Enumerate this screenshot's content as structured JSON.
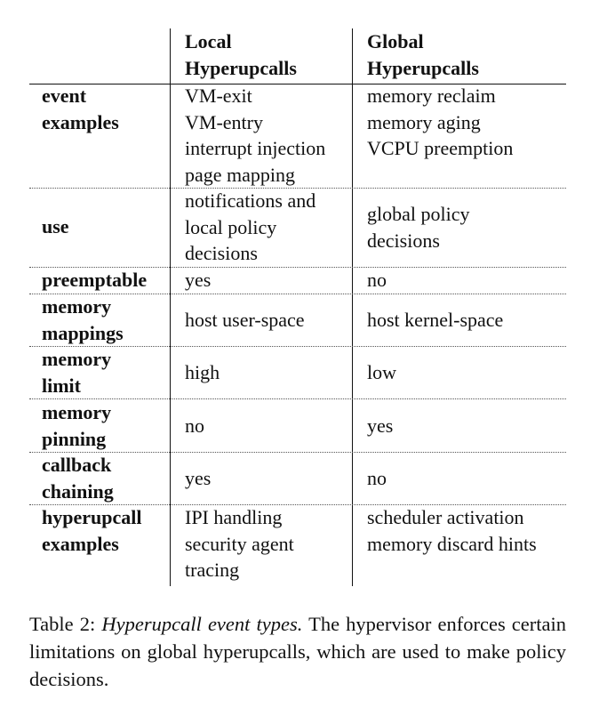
{
  "table": {
    "headers": [
      "Local\nHyperupcalls",
      "Global\nHyperupcalls"
    ],
    "rows": [
      {
        "label": "event\nexamples",
        "local": "VM-exit\nVM-entry\ninterrupt injection\npage mapping",
        "global": "memory reclaim\nmemory aging\nVCPU preemption"
      },
      {
        "label": "use",
        "local": "notifications and\nlocal policy\ndecisions",
        "global": "global policy\ndecisions"
      },
      {
        "label": "preemptable",
        "local": "yes",
        "global": "no"
      },
      {
        "label": "memory\nmappings",
        "local": "host user-space",
        "global": "host kernel-space"
      },
      {
        "label": "memory\nlimit",
        "local": "high",
        "global": "low"
      },
      {
        "label": "memory\npinning",
        "local": "no",
        "global": "yes"
      },
      {
        "label": "callback\nchaining",
        "local": "yes",
        "global": "no"
      },
      {
        "label": "hyperupcall\nexamples",
        "local": "IPI handling\nsecurity agent\ntracing",
        "global": "scheduler activation\nmemory discard hints"
      }
    ]
  },
  "caption": {
    "label": "Table 2:",
    "title": "Hyperupcall event types.",
    "text": "The hypervisor enforces certain limitations on global hyperupcalls, which are used to make policy decisions."
  }
}
